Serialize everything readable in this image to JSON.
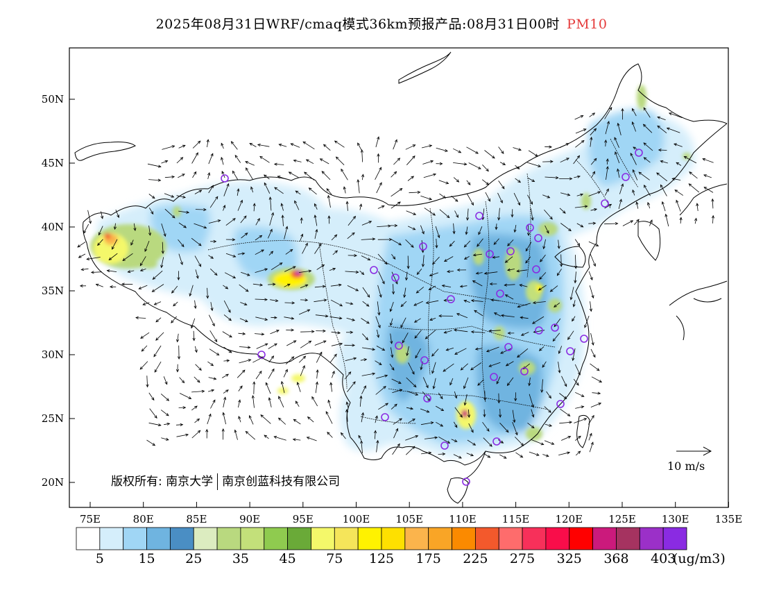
{
  "title": {
    "main": "2025年08月31日WRF/cmaq模式36km预报产品:08月31日00时",
    "variable": "PM10",
    "variable_color": "#e53b3b"
  },
  "axes": {
    "lat_labels": [
      "50N",
      "45N",
      "40N",
      "35N",
      "30N",
      "25N",
      "20N"
    ],
    "lon_labels": [
      "75E",
      "80E",
      "85E",
      "90E",
      "95E",
      "100E",
      "105E",
      "110E",
      "115E",
      "120E",
      "125E",
      "130E",
      "135E"
    ]
  },
  "copyright": {
    "prefix": "版权所有:",
    "org1": "南京大学",
    "org2": "南京创蓝科技有限公司"
  },
  "wind_reference": {
    "label": "10 m/s"
  },
  "colorbar": {
    "colors": [
      "#ffffff",
      "#d5eefb",
      "#a0d6f5",
      "#6fb4e0",
      "#4a8ec4",
      "#dcecc0",
      "#b9d97f",
      "#c3e07a",
      "#8fcb4f",
      "#6aaa38",
      "#f4f86a",
      "#f5e55a",
      "#fff200",
      "#fee000",
      "#fbb44c",
      "#f9a526",
      "#fb8a00",
      "#f3592c",
      "#fe6c6c",
      "#f7305a",
      "#f90d4a",
      "#ff0000",
      "#cb1a7c",
      "#a53360",
      "#9b30c8",
      "#8a2be2"
    ],
    "tick_labels": [
      "5",
      "15",
      "25",
      "35",
      "45",
      "75",
      "125",
      "175",
      "225",
      "275",
      "325",
      "368",
      "403"
    ],
    "unit": "(ug/m3)"
  },
  "markers": {
    "color": "#8a2be2"
  }
}
